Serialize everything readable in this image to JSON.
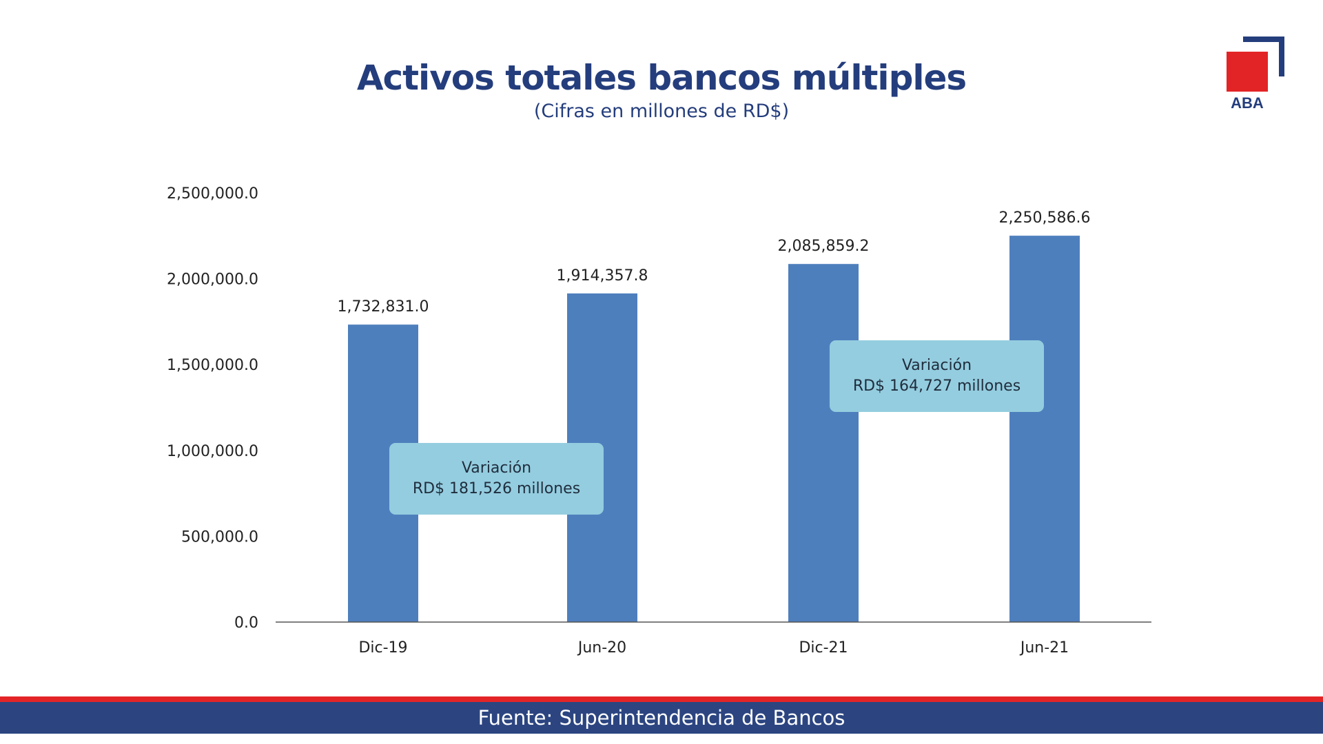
{
  "header": {
    "title": "Activos totales bancos múltiples",
    "subtitle": "(Cifras en millones de RD$)"
  },
  "logo": {
    "text": "ABA",
    "colors": {
      "square": "#e32426",
      "bracket": "#243d7c"
    }
  },
  "callouts": [
    {
      "line1": "Variación",
      "line2": "RD$ 181,526 millones"
    },
    {
      "line1": "Variación",
      "line2": "RD$ 164,727 millones"
    }
  ],
  "footer": {
    "text": "Fuente: Superintendencia de Bancos",
    "colors": {
      "stripe": "#e32426",
      "band": "#2c4581"
    }
  },
  "chart_data": {
    "type": "bar",
    "categories": [
      "Dic-19",
      "Jun-20",
      "Dic-21",
      "Jun-21"
    ],
    "values": [
      1732831.0,
      1914357.8,
      2085859.2,
      2250586.6
    ],
    "value_labels": [
      "1,732,831.0",
      "1,914,357.8",
      "2,085,859.2",
      "2,250,586.6"
    ],
    "yticks": [
      0,
      500000,
      1000000,
      1500000,
      2000000,
      2500000
    ],
    "ytick_labels": [
      "0.0",
      "500,000.0",
      "1,000,000.0",
      "1,500,000.0",
      "2,000,000.0",
      "2,500,000.0"
    ],
    "ylim": [
      0,
      2500000
    ],
    "grid": false,
    "legend": false,
    "bar_color": "#4e7fbd"
  }
}
